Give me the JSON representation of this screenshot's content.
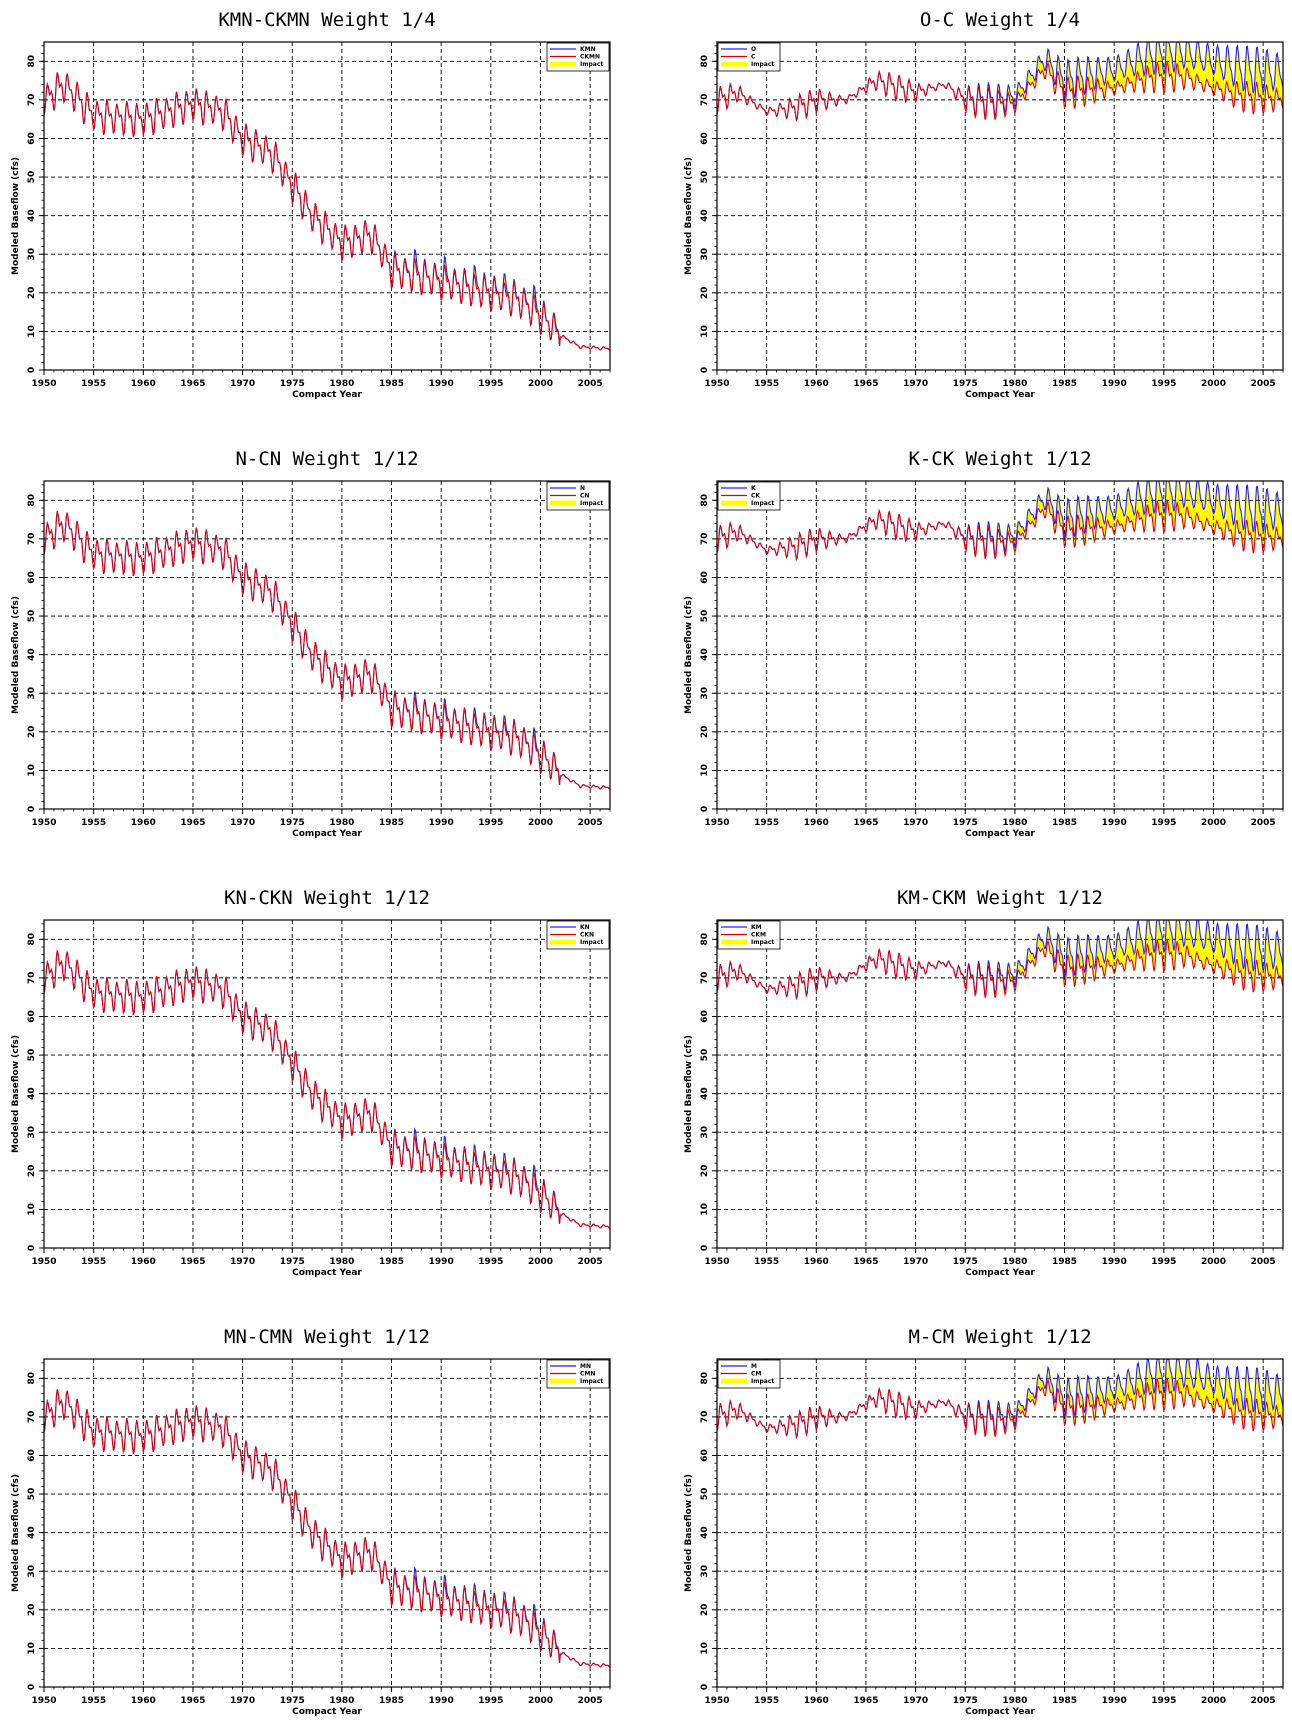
{
  "colors": {
    "series_a": "#2020ff",
    "series_b": "#e00000",
    "impact": "#ffff00",
    "grid": "#000000"
  },
  "chart_data": [
    {
      "type": "area",
      "title": "KMN-CKMN  Weight  1/4",
      "xlabel": "Compact Year",
      "ylabel": "Modeled Baseflow (cfs)",
      "xlim": [
        1950,
        2007
      ],
      "ylim": [
        0,
        85
      ],
      "xticks": [
        1950,
        1955,
        1960,
        1965,
        1970,
        1975,
        1980,
        1985,
        1990,
        1995,
        2000,
        2005
      ],
      "yticks": [
        0,
        10,
        20,
        30,
        40,
        50,
        60,
        70,
        80
      ],
      "grid": true,
      "legend_position": "top-right",
      "profile": "declining",
      "series": [
        {
          "name": "KMN",
          "color": "#2020ff"
        },
        {
          "name": "CKMN",
          "color": "#e00000"
        },
        {
          "name": "Impact",
          "color": "#ffff00"
        }
      ],
      "anchors": [
        [
          1950,
          70
        ],
        [
          1952,
          74
        ],
        [
          1955,
          66
        ],
        [
          1960,
          65
        ],
        [
          1965,
          69
        ],
        [
          1968,
          67
        ],
        [
          1970,
          60
        ],
        [
          1973,
          56
        ],
        [
          1975,
          48
        ],
        [
          1977,
          40
        ],
        [
          1980,
          33
        ],
        [
          1983,
          35
        ],
        [
          1985,
          26
        ],
        [
          1990,
          23
        ],
        [
          1995,
          20
        ],
        [
          1998,
          18
        ],
        [
          2000,
          14
        ],
        [
          2002,
          9
        ],
        [
          2004,
          6
        ],
        [
          2007,
          5.5
        ]
      ],
      "impact_max": 3
    },
    {
      "type": "area",
      "title": "O-C  Weight  1/4",
      "xlabel": "Compact Year",
      "ylabel": "Modeled Baseflow (cfs)",
      "xlim": [
        1950,
        2007
      ],
      "ylim": [
        0,
        85
      ],
      "xticks": [
        1950,
        1955,
        1960,
        1965,
        1970,
        1975,
        1980,
        1985,
        1990,
        1995,
        2000,
        2005
      ],
      "yticks": [
        0,
        10,
        20,
        30,
        40,
        50,
        60,
        70,
        80
      ],
      "grid": true,
      "legend_position": "top-left",
      "profile": "steady",
      "series": [
        {
          "name": "O",
          "color": "#2020ff"
        },
        {
          "name": "C",
          "color": "#e00000"
        },
        {
          "name": "Impact",
          "color": "#ffff00"
        }
      ],
      "anchors": [
        [
          1950,
          70
        ],
        [
          1952,
          72
        ],
        [
          1955,
          67
        ],
        [
          1958,
          68
        ],
        [
          1960,
          70
        ],
        [
          1963,
          70
        ],
        [
          1966,
          75
        ],
        [
          1970,
          72
        ],
        [
          1973,
          74
        ],
        [
          1975,
          70
        ],
        [
          1978,
          69
        ],
        [
          1980,
          69
        ],
        [
          1983,
          78
        ],
        [
          1985,
          72
        ],
        [
          1990,
          73
        ],
        [
          1994,
          76
        ],
        [
          1997,
          76
        ],
        [
          2000,
          73
        ],
        [
          2003,
          71
        ],
        [
          2007,
          70
        ]
      ],
      "impact_max": 10
    },
    {
      "type": "area",
      "title": "N-CN  Weight  1/12",
      "xlabel": "Compact Year",
      "ylabel": "Modeled Baseflow (cfs)",
      "xlim": [
        1950,
        2007
      ],
      "ylim": [
        0,
        85
      ],
      "xticks": [
        1950,
        1955,
        1960,
        1965,
        1970,
        1975,
        1980,
        1985,
        1990,
        1995,
        2000,
        2005
      ],
      "yticks": [
        0,
        10,
        20,
        30,
        40,
        50,
        60,
        70,
        80
      ],
      "grid": true,
      "legend_position": "top-right",
      "profile": "declining",
      "series": [
        {
          "name": "N",
          "color": "#2020ff"
        },
        {
          "name": "CN",
          "color": "#e00000"
        },
        {
          "name": "Impact",
          "color": "#ffff00"
        }
      ],
      "anchors": [
        [
          1950,
          70
        ],
        [
          1952,
          74
        ],
        [
          1955,
          66
        ],
        [
          1960,
          65
        ],
        [
          1965,
          69
        ],
        [
          1968,
          67
        ],
        [
          1970,
          60
        ],
        [
          1973,
          56
        ],
        [
          1975,
          48
        ],
        [
          1977,
          40
        ],
        [
          1980,
          33
        ],
        [
          1983,
          35
        ],
        [
          1985,
          26
        ],
        [
          1990,
          23
        ],
        [
          1995,
          20
        ],
        [
          1998,
          18
        ],
        [
          2000,
          14
        ],
        [
          2002,
          9
        ],
        [
          2004,
          6
        ],
        [
          2007,
          5.5
        ]
      ],
      "impact_max": 2
    },
    {
      "type": "area",
      "title": "K-CK  Weight  1/12",
      "xlabel": "Compact Year",
      "ylabel": "Modeled Baseflow (cfs)",
      "xlim": [
        1950,
        2007
      ],
      "ylim": [
        0,
        85
      ],
      "xticks": [
        1950,
        1955,
        1960,
        1965,
        1970,
        1975,
        1980,
        1985,
        1990,
        1995,
        2000,
        2005
      ],
      "yticks": [
        0,
        10,
        20,
        30,
        40,
        50,
        60,
        70,
        80
      ],
      "grid": true,
      "legend_position": "top-left",
      "profile": "steady",
      "series": [
        {
          "name": "K",
          "color": "#2020ff"
        },
        {
          "name": "CK",
          "color": "#e00000"
        },
        {
          "name": "Impact",
          "color": "#ffff00"
        }
      ],
      "anchors": [
        [
          1950,
          70
        ],
        [
          1952,
          72
        ],
        [
          1955,
          67
        ],
        [
          1958,
          68
        ],
        [
          1960,
          70
        ],
        [
          1963,
          70
        ],
        [
          1966,
          75
        ],
        [
          1970,
          72
        ],
        [
          1973,
          74
        ],
        [
          1975,
          70
        ],
        [
          1978,
          69
        ],
        [
          1980,
          69
        ],
        [
          1983,
          78
        ],
        [
          1985,
          72
        ],
        [
          1990,
          73
        ],
        [
          1994,
          76
        ],
        [
          1997,
          76
        ],
        [
          2000,
          73
        ],
        [
          2003,
          71
        ],
        [
          2007,
          70
        ]
      ],
      "impact_max": 10
    },
    {
      "type": "area",
      "title": "KN-CKN  Weight  1/12",
      "xlabel": "Compact Year",
      "ylabel": "Modeled Baseflow (cfs)",
      "xlim": [
        1950,
        2007
      ],
      "ylim": [
        0,
        85
      ],
      "xticks": [
        1950,
        1955,
        1960,
        1965,
        1970,
        1975,
        1980,
        1985,
        1990,
        1995,
        2000,
        2005
      ],
      "yticks": [
        0,
        10,
        20,
        30,
        40,
        50,
        60,
        70,
        80
      ],
      "grid": true,
      "legend_position": "top-right",
      "profile": "declining",
      "series": [
        {
          "name": "KN",
          "color": "#2020ff"
        },
        {
          "name": "CKN",
          "color": "#e00000"
        },
        {
          "name": "Impact",
          "color": "#ffff00"
        }
      ],
      "anchors": [
        [
          1950,
          70
        ],
        [
          1952,
          74
        ],
        [
          1955,
          66
        ],
        [
          1960,
          65
        ],
        [
          1965,
          69
        ],
        [
          1968,
          67
        ],
        [
          1970,
          60
        ],
        [
          1973,
          56
        ],
        [
          1975,
          48
        ],
        [
          1977,
          40
        ],
        [
          1980,
          33
        ],
        [
          1983,
          35
        ],
        [
          1985,
          26
        ],
        [
          1990,
          23
        ],
        [
          1995,
          20
        ],
        [
          1998,
          18
        ],
        [
          2000,
          14
        ],
        [
          2002,
          9
        ],
        [
          2004,
          6
        ],
        [
          2007,
          5.5
        ]
      ],
      "impact_max": 2.5
    },
    {
      "type": "area",
      "title": "KM-CKM  Weight  1/12",
      "xlabel": "Compact Year",
      "ylabel": "Modeled Baseflow (cfs)",
      "xlim": [
        1950,
        2007
      ],
      "ylim": [
        0,
        85
      ],
      "xticks": [
        1950,
        1955,
        1960,
        1965,
        1970,
        1975,
        1980,
        1985,
        1990,
        1995,
        2000,
        2005
      ],
      "yticks": [
        0,
        10,
        20,
        30,
        40,
        50,
        60,
        70,
        80
      ],
      "grid": true,
      "legend_position": "top-left",
      "profile": "steady",
      "series": [
        {
          "name": "KM",
          "color": "#2020ff"
        },
        {
          "name": "CKM",
          "color": "#e00000"
        },
        {
          "name": "Impact",
          "color": "#ffff00"
        }
      ],
      "anchors": [
        [
          1950,
          70
        ],
        [
          1952,
          72
        ],
        [
          1955,
          67
        ],
        [
          1958,
          68
        ],
        [
          1960,
          70
        ],
        [
          1963,
          70
        ],
        [
          1966,
          75
        ],
        [
          1970,
          72
        ],
        [
          1973,
          74
        ],
        [
          1975,
          70
        ],
        [
          1978,
          69
        ],
        [
          1980,
          69
        ],
        [
          1983,
          78
        ],
        [
          1985,
          72
        ],
        [
          1990,
          73
        ],
        [
          1994,
          76
        ],
        [
          1997,
          76
        ],
        [
          2000,
          73
        ],
        [
          2003,
          71
        ],
        [
          2007,
          70
        ]
      ],
      "impact_max": 10
    },
    {
      "type": "area",
      "title": "MN-CMN  Weight  1/12",
      "xlabel": "Compact Year",
      "ylabel": "Modeled Baseflow (cfs)",
      "xlim": [
        1950,
        2007
      ],
      "ylim": [
        0,
        85
      ],
      "xticks": [
        1950,
        1955,
        1960,
        1965,
        1970,
        1975,
        1980,
        1985,
        1990,
        1995,
        2000,
        2005
      ],
      "yticks": [
        0,
        10,
        20,
        30,
        40,
        50,
        60,
        70,
        80
      ],
      "grid": true,
      "legend_position": "top-right",
      "profile": "declining",
      "series": [
        {
          "name": "MN",
          "color": "#2020ff"
        },
        {
          "name": "CMN",
          "color": "#e00000"
        },
        {
          "name": "Impact",
          "color": "#ffff00"
        }
      ],
      "anchors": [
        [
          1950,
          70
        ],
        [
          1952,
          74
        ],
        [
          1955,
          66
        ],
        [
          1960,
          65
        ],
        [
          1965,
          69
        ],
        [
          1968,
          67
        ],
        [
          1970,
          60
        ],
        [
          1973,
          56
        ],
        [
          1975,
          48
        ],
        [
          1977,
          40
        ],
        [
          1980,
          33
        ],
        [
          1983,
          35
        ],
        [
          1985,
          26
        ],
        [
          1990,
          23
        ],
        [
          1995,
          20
        ],
        [
          1998,
          18
        ],
        [
          2000,
          14
        ],
        [
          2002,
          9
        ],
        [
          2004,
          6
        ],
        [
          2007,
          5.5
        ]
      ],
      "impact_max": 2.5
    },
    {
      "type": "area",
      "title": "M-CM  Weight  1/12",
      "xlabel": "Compact Year",
      "ylabel": "Modeled Baseflow (cfs)",
      "xlim": [
        1950,
        2007
      ],
      "ylim": [
        0,
        85
      ],
      "xticks": [
        1950,
        1955,
        1960,
        1965,
        1970,
        1975,
        1980,
        1985,
        1990,
        1995,
        2000,
        2005
      ],
      "yticks": [
        0,
        10,
        20,
        30,
        40,
        50,
        60,
        70,
        80
      ],
      "grid": true,
      "legend_position": "top-left",
      "profile": "steady",
      "series": [
        {
          "name": "M",
          "color": "#2020ff"
        },
        {
          "name": "CM",
          "color": "#e00000"
        },
        {
          "name": "Impact",
          "color": "#ffff00"
        }
      ],
      "anchors": [
        [
          1950,
          70
        ],
        [
          1952,
          72
        ],
        [
          1955,
          67
        ],
        [
          1958,
          68
        ],
        [
          1960,
          70
        ],
        [
          1963,
          70
        ],
        [
          1966,
          75
        ],
        [
          1970,
          72
        ],
        [
          1973,
          74
        ],
        [
          1975,
          70
        ],
        [
          1978,
          69
        ],
        [
          1980,
          69
        ],
        [
          1983,
          78
        ],
        [
          1985,
          72
        ],
        [
          1990,
          73
        ],
        [
          1994,
          76
        ],
        [
          1997,
          76
        ],
        [
          2000,
          73
        ],
        [
          2003,
          71
        ],
        [
          2007,
          70
        ]
      ],
      "impact_max": 9
    }
  ]
}
